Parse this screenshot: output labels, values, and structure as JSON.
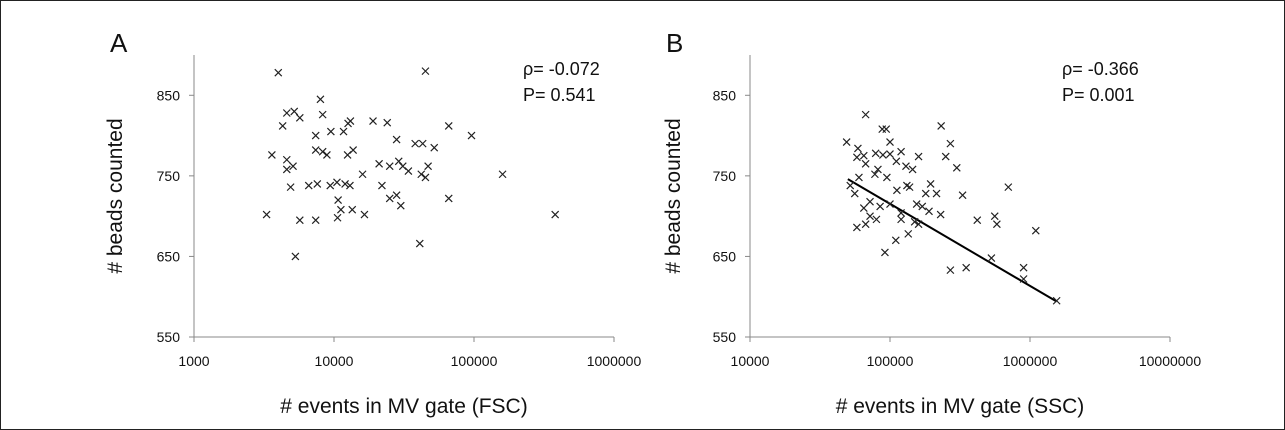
{
  "chart_data": [
    {
      "type": "scatter",
      "panel_label": "A",
      "xlabel": "# events in MV gate (FSC)",
      "ylabel": "# beads counted",
      "x_scale": "log",
      "xlim": [
        1000,
        1000000
      ],
      "ylim": [
        550,
        900
      ],
      "x_ticks": [
        1000,
        10000,
        100000,
        1000000
      ],
      "x_tick_labels": [
        "1000",
        "10000",
        "100000",
        "1000000"
      ],
      "y_ticks": [
        550,
        650,
        750,
        850
      ],
      "y_tick_labels": [
        "550",
        "650",
        "750",
        "850"
      ],
      "marker": "x",
      "annotation": [
        "ρ= -0.072",
        "P= 0.541"
      ],
      "trendline": null,
      "points": [
        [
          4000,
          878
        ],
        [
          45000,
          880
        ],
        [
          4600,
          828
        ],
        [
          5200,
          830
        ],
        [
          4300,
          812
        ],
        [
          5700,
          822
        ],
        [
          8000,
          845
        ],
        [
          8300,
          826
        ],
        [
          12600,
          815
        ],
        [
          13100,
          818
        ],
        [
          19000,
          818
        ],
        [
          24000,
          816
        ],
        [
          9500,
          805
        ],
        [
          11700,
          805
        ],
        [
          7400,
          800
        ],
        [
          28000,
          795
        ],
        [
          38000,
          790
        ],
        [
          66000,
          812
        ],
        [
          96000,
          800
        ],
        [
          43000,
          790
        ],
        [
          52000,
          785
        ],
        [
          3600,
          776
        ],
        [
          4600,
          770
        ],
        [
          7400,
          782
        ],
        [
          8300,
          780
        ],
        [
          8900,
          776
        ],
        [
          12500,
          776
        ],
        [
          13700,
          782
        ],
        [
          21000,
          765
        ],
        [
          25000,
          762
        ],
        [
          29000,
          768
        ],
        [
          31000,
          762
        ],
        [
          34000,
          756
        ],
        [
          16000,
          752
        ],
        [
          47000,
          762
        ],
        [
          42000,
          752
        ],
        [
          45000,
          748
        ],
        [
          160000,
          752
        ],
        [
          4600,
          758
        ],
        [
          5100,
          762
        ],
        [
          6600,
          738
        ],
        [
          7600,
          740
        ],
        [
          9400,
          738
        ],
        [
          10500,
          742
        ],
        [
          12000,
          740
        ],
        [
          13000,
          738
        ],
        [
          22000,
          738
        ],
        [
          25000,
          722
        ],
        [
          28000,
          726
        ],
        [
          10700,
          720
        ],
        [
          11200,
          708
        ],
        [
          13500,
          708
        ],
        [
          4900,
          736
        ],
        [
          66000,
          722
        ],
        [
          3300,
          702
        ],
        [
          5700,
          695
        ],
        [
          7400,
          695
        ],
        [
          10600,
          698
        ],
        [
          16500,
          702
        ],
        [
          30000,
          713
        ],
        [
          380000,
          702
        ],
        [
          41000,
          666
        ],
        [
          5300,
          650
        ]
      ]
    },
    {
      "type": "scatter",
      "panel_label": "B",
      "xlabel": "# events in MV gate (SSC)",
      "ylabel": "# beads counted",
      "x_scale": "log",
      "xlim": [
        10000,
        10000000
      ],
      "ylim": [
        550,
        900
      ],
      "x_ticks": [
        10000,
        100000,
        1000000,
        10000000
      ],
      "x_tick_labels": [
        "10000",
        "100000",
        "1000000",
        "10000000"
      ],
      "y_ticks": [
        550,
        650,
        750,
        850
      ],
      "y_tick_labels": [
        "550",
        "650",
        "750",
        "850"
      ],
      "marker": "x",
      "annotation": [
        "ρ= -0.366",
        "P= 0.001"
      ],
      "trendline": [
        [
          50000,
          746
        ],
        [
          1550000,
          594
        ]
      ],
      "points": [
        [
          67000,
          826
        ],
        [
          232000,
          812
        ],
        [
          88000,
          808
        ],
        [
          94000,
          808
        ],
        [
          49000,
          792
        ],
        [
          100000,
          792
        ],
        [
          59000,
          784
        ],
        [
          270000,
          790
        ],
        [
          79000,
          778
        ],
        [
          65000,
          775
        ],
        [
          58000,
          773
        ],
        [
          100000,
          777
        ],
        [
          111000,
          768
        ],
        [
          89000,
          776
        ],
        [
          120000,
          780
        ],
        [
          160000,
          774
        ],
        [
          250000,
          774
        ],
        [
          300000,
          760
        ],
        [
          130000,
          762
        ],
        [
          145000,
          758
        ],
        [
          67000,
          765
        ],
        [
          82000,
          758
        ],
        [
          60000,
          748
        ],
        [
          78000,
          752
        ],
        [
          95000,
          748
        ],
        [
          132000,
          738
        ],
        [
          138000,
          736
        ],
        [
          195000,
          740
        ],
        [
          112000,
          732
        ],
        [
          180000,
          728
        ],
        [
          215000,
          728
        ],
        [
          330000,
          726
        ],
        [
          700000,
          736
        ],
        [
          52000,
          738
        ],
        [
          72000,
          718
        ],
        [
          85000,
          712
        ],
        [
          100000,
          715
        ],
        [
          155000,
          715
        ],
        [
          170000,
          712
        ],
        [
          120000,
          704
        ],
        [
          190000,
          706
        ],
        [
          230000,
          702
        ],
        [
          120000,
          696
        ],
        [
          150000,
          693
        ],
        [
          56000,
          728
        ],
        [
          65000,
          710
        ],
        [
          72000,
          700
        ],
        [
          80000,
          696
        ],
        [
          58000,
          686
        ],
        [
          67000,
          690
        ],
        [
          560000,
          700
        ],
        [
          420000,
          695
        ],
        [
          580000,
          690
        ],
        [
          1100000,
          682
        ],
        [
          135000,
          678
        ],
        [
          160000,
          690
        ],
        [
          110000,
          670
        ],
        [
          92000,
          655
        ],
        [
          270000,
          633
        ],
        [
          350000,
          636
        ],
        [
          530000,
          648
        ],
        [
          900000,
          636
        ],
        [
          900000,
          622
        ],
        [
          1550000,
          595
        ]
      ]
    }
  ]
}
